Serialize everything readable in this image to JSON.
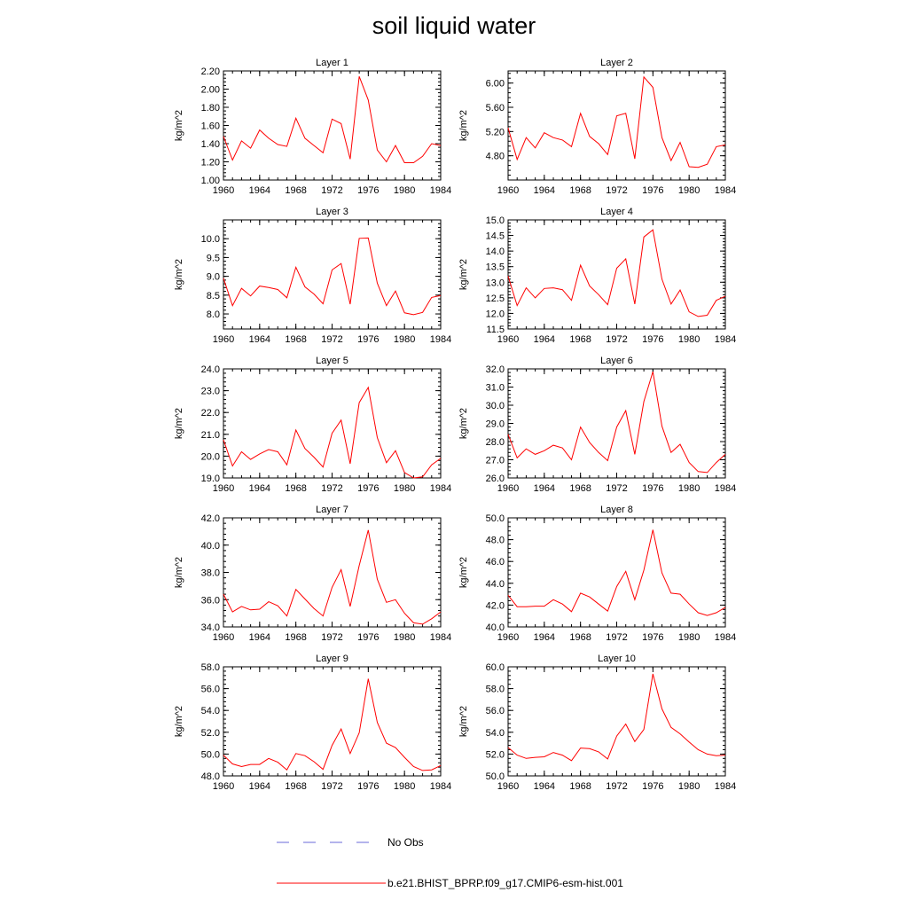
{
  "title": "soil liquid water",
  "legend": [
    {
      "label": "No Obs",
      "color": "#6a6ad8",
      "style": "dashed"
    },
    {
      "label": "b.e21.BHIST_BPRP.f09_g17.CMIP6-esm-hist.001",
      "color": "#ff0000",
      "style": "solid"
    }
  ],
  "chart_data": [
    {
      "type": "line",
      "title": "Layer 1",
      "ylabel": "kg/m^2",
      "xlim": [
        1960,
        1984
      ],
      "ylim": [
        1.0,
        2.2
      ],
      "xticks": [
        1960,
        1964,
        1968,
        1972,
        1976,
        1980,
        1984
      ],
      "yticks": [
        "1.00",
        "1.20",
        "1.40",
        "1.60",
        "1.80",
        "2.00",
        "2.20"
      ],
      "x": [
        1960,
        1961,
        1962,
        1963,
        1964,
        1965,
        1966,
        1967,
        1968,
        1969,
        1970,
        1971,
        1972,
        1973,
        1974,
        1975,
        1976,
        1977,
        1978,
        1979,
        1980,
        1981,
        1982,
        1983,
        1984
      ],
      "series": [
        {
          "color": "#ff0000",
          "values": [
            1.48,
            1.22,
            1.43,
            1.35,
            1.55,
            1.46,
            1.39,
            1.37,
            1.68,
            1.46,
            1.38,
            1.3,
            1.67,
            1.62,
            1.23,
            2.14,
            1.88,
            1.33,
            1.2,
            1.38,
            1.19,
            1.19,
            1.26,
            1.4,
            1.38
          ]
        }
      ]
    },
    {
      "type": "line",
      "title": "Layer 2",
      "ylabel": "kg/m^2",
      "xlim": [
        1960,
        1984
      ],
      "ylim": [
        4.4,
        6.2
      ],
      "xticks": [
        1960,
        1964,
        1968,
        1972,
        1976,
        1980,
        1984
      ],
      "yticks": [
        "4.80",
        "5.20",
        "5.60",
        "6.00"
      ],
      "x": [
        1960,
        1961,
        1962,
        1963,
        1964,
        1965,
        1966,
        1967,
        1968,
        1969,
        1970,
        1971,
        1972,
        1973,
        1974,
        1975,
        1976,
        1977,
        1978,
        1979,
        1980,
        1981,
        1982,
        1983,
        1984
      ],
      "series": [
        {
          "color": "#ff0000",
          "values": [
            5.26,
            4.74,
            5.1,
            4.93,
            5.18,
            5.1,
            5.06,
            4.95,
            5.5,
            5.12,
            5.0,
            4.82,
            5.46,
            5.5,
            4.75,
            6.1,
            5.93,
            5.1,
            4.72,
            5.02,
            4.62,
            4.61,
            4.66,
            4.95,
            4.98
          ]
        }
      ]
    },
    {
      "type": "line",
      "title": "Layer 3",
      "ylabel": "kg/m^2",
      "xlim": [
        1960,
        1984
      ],
      "ylim": [
        7.6,
        10.5
      ],
      "xticks": [
        1960,
        1964,
        1968,
        1972,
        1976,
        1980,
        1984
      ],
      "yticks": [
        "8.0",
        "8.5",
        "9.0",
        "9.5",
        "10.0"
      ],
      "x": [
        1960,
        1961,
        1962,
        1963,
        1964,
        1965,
        1966,
        1967,
        1968,
        1969,
        1970,
        1971,
        1972,
        1973,
        1974,
        1975,
        1976,
        1977,
        1978,
        1979,
        1980,
        1981,
        1982,
        1983,
        1984
      ],
      "series": [
        {
          "color": "#ff0000",
          "values": [
            8.95,
            8.22,
            8.68,
            8.48,
            8.74,
            8.7,
            8.65,
            8.43,
            9.24,
            8.72,
            8.53,
            8.27,
            9.17,
            9.34,
            8.26,
            10.01,
            10.02,
            8.82,
            8.22,
            8.61,
            8.03,
            7.98,
            8.04,
            8.44,
            8.49
          ]
        }
      ]
    },
    {
      "type": "line",
      "title": "Layer 4",
      "ylabel": "kg/m^2",
      "xlim": [
        1960,
        1984
      ],
      "ylim": [
        11.5,
        15.0
      ],
      "xticks": [
        1960,
        1964,
        1968,
        1972,
        1976,
        1980,
        1984
      ],
      "yticks": [
        "11.5",
        "12.0",
        "12.5",
        "13.0",
        "13.5",
        "14.0",
        "14.5",
        "15.0"
      ],
      "x": [
        1960,
        1961,
        1962,
        1963,
        1964,
        1965,
        1966,
        1967,
        1968,
        1969,
        1970,
        1971,
        1972,
        1973,
        1974,
        1975,
        1976,
        1977,
        1978,
        1979,
        1980,
        1981,
        1982,
        1983,
        1984
      ],
      "series": [
        {
          "color": "#ff0000",
          "values": [
            13.2,
            12.25,
            12.82,
            12.5,
            12.8,
            12.82,
            12.76,
            12.42,
            13.55,
            12.88,
            12.6,
            12.28,
            13.45,
            13.75,
            12.3,
            14.45,
            14.68,
            13.1,
            12.3,
            12.75,
            12.05,
            11.9,
            11.94,
            12.42,
            12.55
          ]
        }
      ]
    },
    {
      "type": "line",
      "title": "Layer 5",
      "ylabel": "kg/m^2",
      "xlim": [
        1960,
        1984
      ],
      "ylim": [
        19.0,
        24.0
      ],
      "xticks": [
        1960,
        1964,
        1968,
        1972,
        1976,
        1980,
        1984
      ],
      "yticks": [
        "19.0",
        "20.0",
        "21.0",
        "22.0",
        "23.0",
        "24.0"
      ],
      "x": [
        1960,
        1961,
        1962,
        1963,
        1964,
        1965,
        1966,
        1967,
        1968,
        1969,
        1970,
        1971,
        1972,
        1973,
        1974,
        1975,
        1976,
        1977,
        1978,
        1979,
        1980,
        1981,
        1982,
        1983,
        1984
      ],
      "series": [
        {
          "color": "#ff0000",
          "values": [
            20.75,
            19.55,
            20.2,
            19.85,
            20.1,
            20.3,
            20.2,
            19.6,
            21.2,
            20.35,
            19.95,
            19.5,
            21.05,
            21.65,
            19.65,
            22.45,
            23.15,
            20.85,
            19.7,
            20.25,
            19.25,
            19.0,
            19.05,
            19.6,
            19.9
          ]
        }
      ]
    },
    {
      "type": "line",
      "title": "Layer 6",
      "ylabel": "kg/m^2",
      "xlim": [
        1960,
        1984
      ],
      "ylim": [
        26.0,
        32.0
      ],
      "xticks": [
        1960,
        1964,
        1968,
        1972,
        1976,
        1980,
        1984
      ],
      "yticks": [
        "26.0",
        "27.0",
        "28.0",
        "29.0",
        "30.0",
        "31.0",
        "32.0"
      ],
      "x": [
        1960,
        1961,
        1962,
        1963,
        1964,
        1965,
        1966,
        1967,
        1968,
        1969,
        1970,
        1971,
        1972,
        1973,
        1974,
        1975,
        1976,
        1977,
        1978,
        1979,
        1980,
        1981,
        1982,
        1983,
        1984
      ],
      "series": [
        {
          "color": "#ff0000",
          "values": [
            28.4,
            27.1,
            27.6,
            27.3,
            27.5,
            27.8,
            27.65,
            27.0,
            28.8,
            27.95,
            27.4,
            26.95,
            28.8,
            29.7,
            27.3,
            30.2,
            31.85,
            28.85,
            27.4,
            27.85,
            26.85,
            26.35,
            26.3,
            26.85,
            27.3
          ]
        }
      ]
    },
    {
      "type": "line",
      "title": "Layer 7",
      "ylabel": "kg/m^2",
      "xlim": [
        1960,
        1984
      ],
      "ylim": [
        34.0,
        42.0
      ],
      "xticks": [
        1960,
        1964,
        1968,
        1972,
        1976,
        1980,
        1984
      ],
      "yticks": [
        "34.0",
        "36.0",
        "38.0",
        "40.0",
        "42.0"
      ],
      "x": [
        1960,
        1961,
        1962,
        1963,
        1964,
        1965,
        1966,
        1967,
        1968,
        1969,
        1970,
        1971,
        1972,
        1973,
        1974,
        1975,
        1976,
        1977,
        1978,
        1979,
        1980,
        1981,
        1982,
        1983,
        1984
      ],
      "series": [
        {
          "color": "#ff0000",
          "values": [
            36.4,
            35.1,
            35.5,
            35.25,
            35.3,
            35.85,
            35.55,
            34.8,
            36.75,
            36.05,
            35.35,
            34.8,
            36.9,
            38.2,
            35.5,
            38.5,
            41.1,
            37.5,
            35.8,
            36.0,
            35.0,
            34.3,
            34.2,
            34.6,
            35.1
          ]
        }
      ]
    },
    {
      "type": "line",
      "title": "Layer 8",
      "ylabel": "kg/m^2",
      "xlim": [
        1960,
        1984
      ],
      "ylim": [
        40.0,
        50.0
      ],
      "xticks": [
        1960,
        1964,
        1968,
        1972,
        1976,
        1980,
        1984
      ],
      "yticks": [
        "40.0",
        "42.0",
        "44.0",
        "46.0",
        "48.0",
        "50.0"
      ],
      "x": [
        1960,
        1961,
        1962,
        1963,
        1964,
        1965,
        1966,
        1967,
        1968,
        1969,
        1970,
        1971,
        1972,
        1973,
        1974,
        1975,
        1976,
        1977,
        1978,
        1979,
        1980,
        1981,
        1982,
        1983,
        1984
      ],
      "series": [
        {
          "color": "#ff0000",
          "values": [
            42.9,
            41.85,
            41.85,
            41.9,
            41.9,
            42.5,
            42.1,
            41.4,
            43.1,
            42.75,
            42.1,
            41.45,
            43.7,
            45.1,
            42.5,
            45.2,
            48.9,
            44.95,
            43.1,
            43.0,
            42.1,
            41.3,
            41.05,
            41.3,
            41.8
          ]
        }
      ]
    },
    {
      "type": "line",
      "title": "Layer 9",
      "ylabel": "kg/m^2",
      "xlim": [
        1960,
        1984
      ],
      "ylim": [
        48.0,
        58.0
      ],
      "xticks": [
        1960,
        1964,
        1968,
        1972,
        1976,
        1980,
        1984
      ],
      "yticks": [
        "48.0",
        "50.0",
        "52.0",
        "54.0",
        "56.0",
        "58.0"
      ],
      "x": [
        1960,
        1961,
        1962,
        1963,
        1964,
        1965,
        1966,
        1967,
        1968,
        1969,
        1970,
        1971,
        1972,
        1973,
        1974,
        1975,
        1976,
        1977,
        1978,
        1979,
        1980,
        1981,
        1982,
        1983,
        1984
      ],
      "series": [
        {
          "color": "#ff0000",
          "values": [
            49.9,
            49.1,
            48.85,
            49.05,
            49.05,
            49.6,
            49.25,
            48.55,
            50.05,
            49.85,
            49.3,
            48.6,
            50.8,
            52.3,
            50.05,
            51.95,
            56.9,
            52.9,
            51.0,
            50.6,
            49.7,
            48.85,
            48.5,
            48.55,
            48.95
          ]
        }
      ]
    },
    {
      "type": "line",
      "title": "Layer 10",
      "ylabel": "kg/m^2",
      "xlim": [
        1960,
        1984
      ],
      "ylim": [
        50.0,
        60.0
      ],
      "xticks": [
        1960,
        1964,
        1968,
        1972,
        1976,
        1980,
        1984
      ],
      "yticks": [
        "50.0",
        "52.0",
        "54.0",
        "56.0",
        "58.0",
        "60.0"
      ],
      "x": [
        1960,
        1961,
        1962,
        1963,
        1964,
        1965,
        1966,
        1967,
        1968,
        1969,
        1970,
        1971,
        1972,
        1973,
        1974,
        1975,
        1976,
        1977,
        1978,
        1979,
        1980,
        1981,
        1982,
        1983,
        1984
      ],
      "series": [
        {
          "color": "#ff0000",
          "values": [
            52.6,
            51.9,
            51.6,
            51.7,
            51.75,
            52.15,
            51.9,
            51.4,
            52.55,
            52.5,
            52.2,
            51.55,
            53.65,
            54.75,
            53.15,
            54.25,
            59.35,
            56.15,
            54.45,
            53.85,
            53.1,
            52.4,
            52.0,
            51.85,
            51.9
          ]
        }
      ]
    }
  ]
}
